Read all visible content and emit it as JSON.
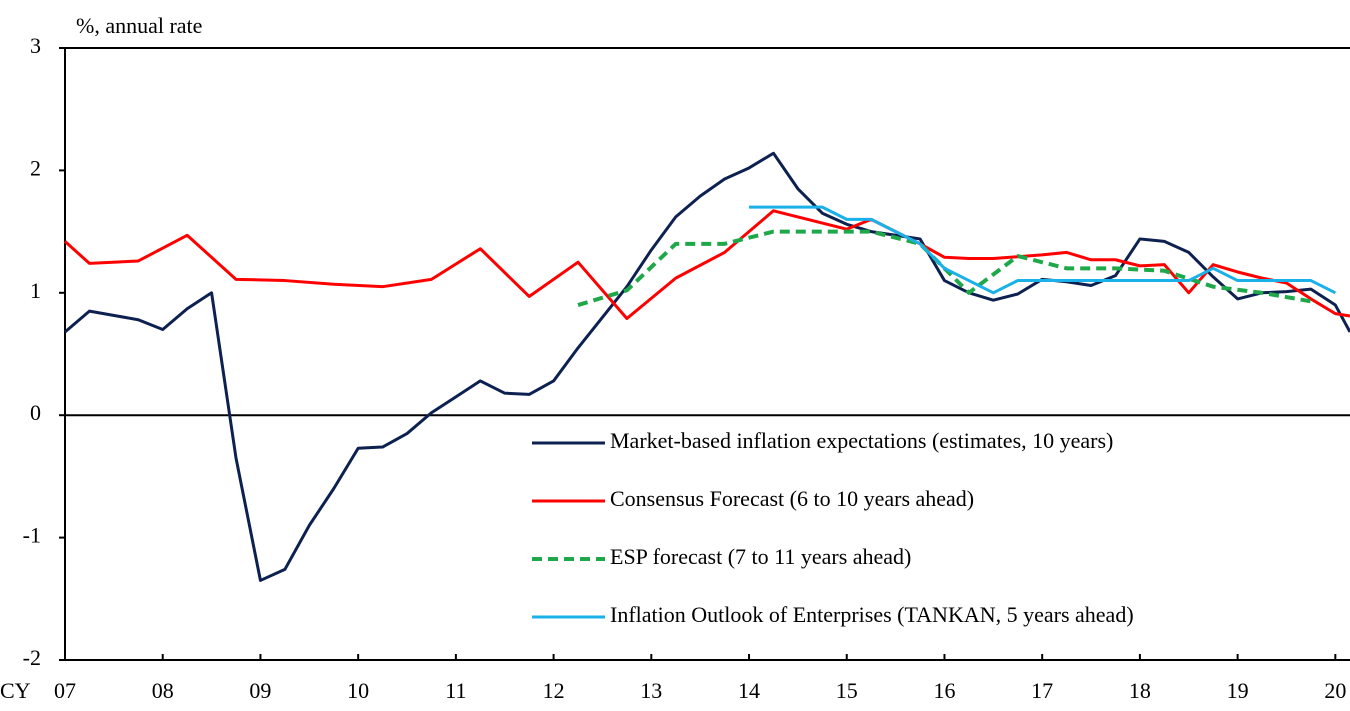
{
  "chart_data": {
    "type": "line",
    "ylabel": "%, annual rate",
    "xlabel": "CY",
    "xlim": [
      7,
      20.15
    ],
    "ylim": [
      -2,
      3
    ],
    "yticks": [
      -2,
      -1,
      0,
      1,
      2,
      3
    ],
    "xticks": [
      {
        "value": 7,
        "label": "07"
      },
      {
        "value": 8,
        "label": "08"
      },
      {
        "value": 9,
        "label": "09"
      },
      {
        "value": 10,
        "label": "10"
      },
      {
        "value": 11,
        "label": "11"
      },
      {
        "value": 12,
        "label": "12"
      },
      {
        "value": 13,
        "label": "13"
      },
      {
        "value": 14,
        "label": "14"
      },
      {
        "value": 15,
        "label": "15"
      },
      {
        "value": 16,
        "label": "16"
      },
      {
        "value": 17,
        "label": "17"
      },
      {
        "value": 18,
        "label": "18"
      },
      {
        "value": 19,
        "label": "19"
      },
      {
        "value": 20,
        "label": "20"
      }
    ],
    "legend": "lower right",
    "series": [
      {
        "name": "Market-based inflation expectations (estimates, 10 years)",
        "color": "#0d2150",
        "dash": false,
        "x": [
          7.0,
          7.25,
          7.75,
          8.0,
          8.25,
          8.5,
          8.75,
          9.0,
          9.25,
          9.5,
          9.75,
          10.0,
          10.25,
          10.5,
          10.75,
          11.0,
          11.25,
          11.5,
          11.75,
          12.0,
          12.25,
          12.5,
          12.75,
          13.0,
          13.25,
          13.5,
          13.75,
          14.0,
          14.25,
          14.5,
          14.75,
          15.0,
          15.25,
          15.5,
          15.75,
          16.0,
          16.25,
          16.5,
          16.75,
          17.0,
          17.25,
          17.5,
          17.75,
          18.0,
          18.25,
          18.5,
          18.75,
          19.0,
          19.25,
          19.5,
          19.75,
          20.0,
          20.15
        ],
        "values": [
          0.68,
          0.85,
          0.78,
          0.7,
          0.87,
          1.0,
          -0.35,
          -1.35,
          -1.26,
          -0.9,
          -0.6,
          -0.27,
          -0.26,
          -0.15,
          0.02,
          0.15,
          0.28,
          0.18,
          0.17,
          0.28,
          0.55,
          0.8,
          1.05,
          1.35,
          1.62,
          1.79,
          1.93,
          2.02,
          2.14,
          1.85,
          1.65,
          1.56,
          1.5,
          1.47,
          1.44,
          1.1,
          1.0,
          0.94,
          0.99,
          1.11,
          1.09,
          1.06,
          1.14,
          1.44,
          1.42,
          1.33,
          1.13,
          0.95,
          1.0,
          1.01,
          1.03,
          0.9,
          0.68
        ]
      },
      {
        "name": "Consensus Forecast (6 to 10 years ahead)",
        "color": "#ff0000",
        "dash": false,
        "x": [
          7.0,
          7.25,
          7.75,
          8.25,
          8.75,
          9.25,
          9.75,
          10.25,
          10.75,
          11.25,
          11.75,
          12.25,
          12.75,
          13.25,
          13.75,
          14.25,
          14.75,
          15.0,
          15.25,
          15.75,
          16.0,
          16.25,
          16.5,
          17.0,
          17.25,
          17.5,
          17.75,
          18.0,
          18.25,
          18.5,
          18.75,
          19.0,
          19.25,
          19.5,
          19.75,
          20.0,
          20.15
        ],
        "values": [
          1.42,
          1.24,
          1.26,
          1.47,
          1.11,
          1.1,
          1.07,
          1.05,
          1.11,
          1.36,
          0.97,
          1.25,
          0.79,
          1.12,
          1.33,
          1.67,
          1.57,
          1.52,
          1.6,
          1.4,
          1.29,
          1.28,
          1.28,
          1.31,
          1.33,
          1.27,
          1.27,
          1.22,
          1.23,
          1.0,
          1.23,
          1.17,
          1.12,
          1.08,
          0.95,
          0.83,
          0.81
        ]
      },
      {
        "name": "ESP forecast (7 to 11 years ahead)",
        "color": "#1fa84a",
        "dash": true,
        "x": [
          12.25,
          12.75,
          13.25,
          13.75,
          14.25,
          14.75,
          15.25,
          15.75,
          16.25,
          16.75,
          17.25,
          17.75,
          18.25,
          18.75,
          19.25,
          19.75
        ],
        "values": [
          0.9,
          1.02,
          1.4,
          1.4,
          1.5,
          1.5,
          1.5,
          1.4,
          1.0,
          1.3,
          1.2,
          1.2,
          1.18,
          1.05,
          1.0,
          0.93
        ]
      },
      {
        "name": "Inflation Outlook of Enterprises (TANKAN, 5 years ahead)",
        "color": "#1ab0e8",
        "dash": false,
        "x": [
          14.0,
          14.25,
          14.5,
          14.75,
          15.0,
          15.25,
          15.5,
          15.75,
          16.0,
          16.25,
          16.5,
          16.75,
          17.0,
          17.25,
          17.5,
          17.75,
          18.0,
          18.25,
          18.5,
          18.75,
          19.0,
          19.25,
          19.5,
          19.75,
          20.0
        ],
        "values": [
          1.7,
          1.7,
          1.7,
          1.7,
          1.6,
          1.6,
          1.5,
          1.4,
          1.2,
          1.1,
          1.0,
          1.1,
          1.1,
          1.1,
          1.1,
          1.1,
          1.1,
          1.1,
          1.1,
          1.2,
          1.1,
          1.1,
          1.1,
          1.1,
          1.0
        ]
      }
    ]
  }
}
